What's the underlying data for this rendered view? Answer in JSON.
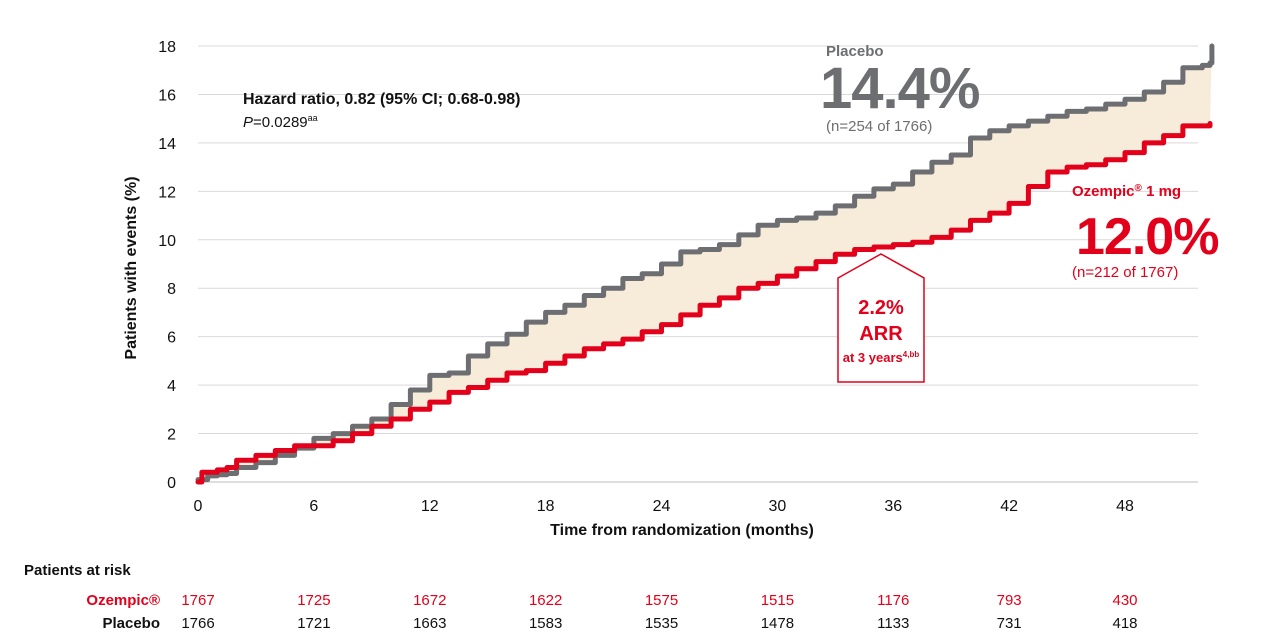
{
  "chart_data": {
    "type": "line",
    "xlabel": "Time from randomization (months)",
    "ylabel": "Patients with events (%)",
    "xlim": [
      0,
      53
    ],
    "ylim": [
      0,
      18
    ],
    "xticks": [
      0,
      6,
      12,
      18,
      24,
      30,
      36,
      42,
      48
    ],
    "yticks": [
      0,
      2,
      4,
      6,
      8,
      10,
      12,
      14,
      16,
      18
    ],
    "grid": "horizontal",
    "series": [
      {
        "name": "Placebo",
        "color": "#6d6e71",
        "points": [
          [
            0,
            0.1
          ],
          [
            0.5,
            0.25
          ],
          [
            1,
            0.3
          ],
          [
            1.5,
            0.35
          ],
          [
            2,
            0.6
          ],
          [
            3,
            0.8
          ],
          [
            4,
            1.1
          ],
          [
            5,
            1.4
          ],
          [
            6,
            1.8
          ],
          [
            7,
            2.0
          ],
          [
            8,
            2.3
          ],
          [
            9,
            2.6
          ],
          [
            10,
            3.2
          ],
          [
            11,
            3.8
          ],
          [
            12,
            4.4
          ],
          [
            13,
            4.5
          ],
          [
            14,
            5.2
          ],
          [
            15,
            5.7
          ],
          [
            16,
            6.1
          ],
          [
            17,
            6.6
          ],
          [
            18,
            7.0
          ],
          [
            19,
            7.3
          ],
          [
            20,
            7.7
          ],
          [
            21,
            8.0
          ],
          [
            22,
            8.4
          ],
          [
            23,
            8.6
          ],
          [
            24,
            9.0
          ],
          [
            25,
            9.5
          ],
          [
            26,
            9.6
          ],
          [
            27,
            9.8
          ],
          [
            28,
            10.2
          ],
          [
            29,
            10.6
          ],
          [
            30,
            10.8
          ],
          [
            31,
            10.9
          ],
          [
            32,
            11.1
          ],
          [
            33,
            11.4
          ],
          [
            34,
            11.8
          ],
          [
            35,
            12.1
          ],
          [
            36,
            12.3
          ],
          [
            37,
            12.8
          ],
          [
            38,
            13.2
          ],
          [
            39,
            13.5
          ],
          [
            40,
            14.2
          ],
          [
            41,
            14.5
          ],
          [
            42,
            14.7
          ],
          [
            43,
            14.9
          ],
          [
            44,
            15.1
          ],
          [
            45,
            15.3
          ],
          [
            46,
            15.4
          ],
          [
            47,
            15.6
          ],
          [
            48,
            15.8
          ],
          [
            49,
            16.1
          ],
          [
            50,
            16.5
          ],
          [
            51,
            17.1
          ],
          [
            52,
            17.2
          ],
          [
            52.4,
            17.3
          ],
          [
            52.5,
            18.0
          ]
        ]
      },
      {
        "name": "Ozempic® 1 mg",
        "color": "#e2001a",
        "points": [
          [
            0,
            0
          ],
          [
            0.2,
            0.4
          ],
          [
            1,
            0.5
          ],
          [
            1.5,
            0.6
          ],
          [
            2,
            0.9
          ],
          [
            3,
            1.1
          ],
          [
            4,
            1.3
          ],
          [
            5,
            1.5
          ],
          [
            6,
            1.5
          ],
          [
            7,
            1.7
          ],
          [
            8,
            2.0
          ],
          [
            9,
            2.3
          ],
          [
            10,
            2.6
          ],
          [
            11,
            3.0
          ],
          [
            12,
            3.3
          ],
          [
            13,
            3.7
          ],
          [
            14,
            3.9
          ],
          [
            15,
            4.2
          ],
          [
            16,
            4.5
          ],
          [
            17,
            4.6
          ],
          [
            18,
            4.9
          ],
          [
            19,
            5.2
          ],
          [
            20,
            5.5
          ],
          [
            21,
            5.7
          ],
          [
            22,
            5.9
          ],
          [
            23,
            6.2
          ],
          [
            24,
            6.5
          ],
          [
            25,
            6.9
          ],
          [
            26,
            7.3
          ],
          [
            27,
            7.6
          ],
          [
            28,
            8.0
          ],
          [
            29,
            8.2
          ],
          [
            30,
            8.5
          ],
          [
            31,
            8.8
          ],
          [
            32,
            9.1
          ],
          [
            33,
            9.4
          ],
          [
            34,
            9.6
          ],
          [
            35,
            9.7
          ],
          [
            36,
            9.8
          ],
          [
            37,
            9.9
          ],
          [
            38,
            10.1
          ],
          [
            39,
            10.4
          ],
          [
            40,
            10.8
          ],
          [
            41,
            11.1
          ],
          [
            42,
            11.5
          ],
          [
            43,
            12.2
          ],
          [
            44,
            12.8
          ],
          [
            45,
            13.0
          ],
          [
            46,
            13.1
          ],
          [
            47,
            13.3
          ],
          [
            48,
            13.6
          ],
          [
            49,
            14.0
          ],
          [
            50,
            14.3
          ],
          [
            51,
            14.7
          ],
          [
            52.4,
            14.8
          ]
        ]
      }
    ],
    "annotations": {
      "hazard_ratio": "Hazard ratio, 0.82 (95% CI; 0.68-0.98)",
      "p_value_prefix": "P",
      "p_value_text": "=0.0289",
      "p_value_sup": "aa",
      "placebo_label": "Placebo",
      "placebo_pct": "14.4%",
      "placebo_n": "(n=254 of 1766)",
      "ozempic_label": "Ozempic",
      "ozempic_reg": "®",
      "ozempic_dose": " 1 mg",
      "ozempic_pct": "12.0%",
      "ozempic_n": "(n=212 of 1767)",
      "arr_pct": "2.2%",
      "arr_label": "ARR",
      "arr_sub": "at 3 years",
      "arr_sup": "4,bb"
    },
    "at_risk": {
      "title": "Patients at risk",
      "rows": [
        {
          "label": "Ozempic®",
          "color": "#e2001a",
          "values": [
            "1767",
            "1725",
            "1672",
            "1622",
            "1575",
            "1515",
            "1176",
            "793",
            "430"
          ]
        },
        {
          "label": "Placebo",
          "color": "#111111",
          "values": [
            "1766",
            "1721",
            "1663",
            "1583",
            "1535",
            "1478",
            "1133",
            "731",
            "418"
          ]
        }
      ]
    },
    "fill_color": "#f7ecd9"
  }
}
